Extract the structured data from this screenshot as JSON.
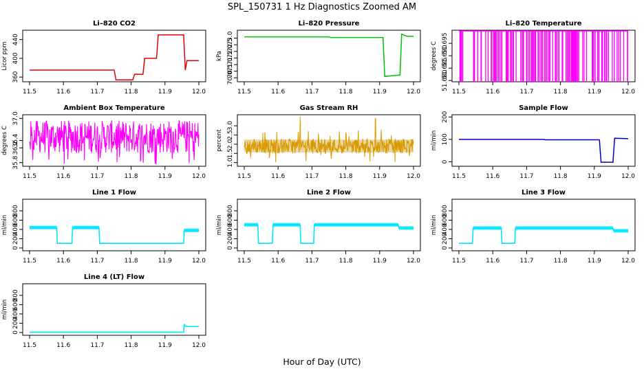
{
  "title": "SPL_150731  1 Hz Diagnostics Zoomed AM",
  "xlabel": "Hour of Day (UTC)",
  "chart_data": [
    {
      "type": "line",
      "title": "Li–820 CO2",
      "ylabel": "Licor ppm",
      "color": "#e00000",
      "xlim": [
        11.5,
        12.0
      ],
      "ylim": [
        350,
        460
      ],
      "xticks": [
        "11.5",
        "11.6",
        "11.7",
        "11.8",
        "11.9",
        "12.0"
      ],
      "yticks": [
        [
          "360",
          360
        ],
        [
          "400",
          400
        ],
        [
          "440",
          440
        ]
      ],
      "series": [
        {
          "x": [
            11.5,
            11.75,
            11.755,
            11.805,
            11.81,
            11.835,
            11.84,
            11.875,
            11.88,
            11.955,
            11.96,
            11.965,
            12.0
          ],
          "y": [
            375,
            375,
            354,
            354,
            366,
            366,
            400,
            400,
            450,
            450,
            375,
            395,
            395
          ]
        }
      ]
    },
    {
      "type": "line",
      "title": "Li–820 Pressure",
      "ylabel": "kPa",
      "color": "#00c000",
      "xlim": [
        11.5,
        12.0
      ],
      "ylim": [
        69.7,
        73.6
      ],
      "xticks": [
        "11.5",
        "11.6",
        "11.7",
        "11.8",
        "11.9",
        "12.0"
      ],
      "yticks": [
        [
          "70.0",
          70.0
        ],
        [
          "70.5",
          70.5
        ],
        [
          "71.0",
          71.0
        ],
        [
          "71.5",
          71.5
        ],
        [
          "72.0",
          72.0
        ],
        [
          "72.5",
          72.5
        ],
        [
          "73.0",
          73.0
        ]
      ],
      "series": [
        {
          "x": [
            11.5,
            11.75,
            11.755,
            11.91,
            11.915,
            11.955,
            11.96,
            11.965,
            11.98,
            12.0
          ],
          "y": [
            73.1,
            73.1,
            73.05,
            73.05,
            70.1,
            70.2,
            70.2,
            73.3,
            73.15,
            73.15
          ]
        }
      ]
    },
    {
      "type": "line",
      "title": "Li–820 Temperature",
      "ylabel": "degrees C",
      "color": "#ff00ff",
      "xlim": [
        11.5,
        12.0
      ],
      "ylim": [
        51.6795,
        51.7003
      ],
      "xticks": [
        "11.5",
        "11.6",
        "11.7",
        "11.8",
        "11.9",
        "12.0"
      ],
      "yticks": [
        [
          "51.680",
          51.68
        ],
        [
          "51.685",
          51.685
        ],
        [
          "51.690",
          51.69
        ],
        [
          "51.695",
          51.695
        ]
      ],
      "series": [
        {
          "note_values": "alternating between 51.700 and 51.679 with dense spikes"
        }
      ]
    },
    {
      "type": "line",
      "title": "Ambient Box Temperature",
      "ylabel": "degrees C",
      "color": "#ff00ff",
      "xlim": [
        11.5,
        12.0
      ],
      "ylim": [
        35.7,
        37.1
      ],
      "xticks": [
        "11.5",
        "11.6",
        "11.7",
        "11.8",
        "11.9",
        "12.0"
      ],
      "yticks": [
        [
          "35.8",
          35.8
        ],
        [
          "36.2",
          36.2
        ],
        [
          "36.4",
          36.4
        ],
        [
          "37.0",
          37.0
        ]
      ],
      "series": [
        {
          "low": 36.05,
          "high": 36.95
        }
      ]
    },
    {
      "type": "line",
      "title": "Gas Stream RH",
      "ylabel": "percent",
      "color": "#e0a000",
      "xlim": [
        11.5,
        12.0
      ],
      "ylim": [
        0.8,
        3.6
      ],
      "xticks": [
        "11.5",
        "11.6",
        "11.7",
        "11.8",
        "11.9",
        "12.0"
      ],
      "yticks": [
        [
          "1.0",
          1.0
        ],
        [
          "1.5",
          1.5
        ],
        [
          "2.0",
          2.0
        ],
        [
          "2.5",
          2.5
        ],
        [
          "3.0",
          3.0
        ]
      ],
      "series": [
        {
          "low": 1.5,
          "high": 2.3,
          "peaks": [
            [
              11.665,
              3.5
            ],
            [
              11.888,
              3.4
            ]
          ]
        }
      ]
    },
    {
      "type": "line",
      "title": "Sample Flow",
      "ylabel": "ml/min",
      "color": "#0000cc",
      "xlim": [
        11.5,
        12.0
      ],
      "ylim": [
        -20,
        210
      ],
      "xticks": [
        "11.5",
        "11.6",
        "11.7",
        "11.8",
        "11.9",
        "12.0"
      ],
      "yticks": [
        [
          "0",
          0
        ],
        [
          "100",
          100
        ],
        [
          "200",
          200
        ]
      ],
      "series": [
        {
          "x": [
            11.5,
            11.75,
            11.755,
            11.915,
            11.92,
            11.955,
            11.96,
            12.0
          ],
          "y": [
            100,
            100,
            98,
            98,
            -2,
            -2,
            105,
            103
          ]
        }
      ]
    },
    {
      "type": "line",
      "title": "Line 1 Flow",
      "ylabel": "ml/min",
      "color": "#00e5ff",
      "xlim": [
        11.5,
        12.0
      ],
      "ylim": [
        -60,
        1050
      ],
      "xticks": [
        "11.5",
        "11.6",
        "11.7",
        "11.8",
        "11.9",
        "12.0"
      ],
      "yticks": [
        [
          "0",
          0
        ],
        [
          "200",
          200
        ],
        [
          "400",
          400
        ],
        [
          "600",
          600
        ],
        [
          "800",
          800
        ]
      ],
      "series": [
        {
          "x": [
            11.5,
            11.58,
            11.582,
            11.625,
            11.627,
            11.705,
            11.707,
            11.955,
            11.957,
            12.0
          ],
          "y": [
            440,
            440,
            100,
            100,
            440,
            440,
            100,
            100,
            380,
            380
          ]
        }
      ]
    },
    {
      "type": "line",
      "title": "Line 2 Flow",
      "ylabel": "ml/min",
      "color": "#00e5ff",
      "xlim": [
        11.5,
        12.0
      ],
      "ylim": [
        -60,
        1050
      ],
      "xticks": [
        "11.5",
        "11.6",
        "11.7",
        "11.8",
        "11.9",
        "12.0"
      ],
      "yticks": [
        [
          "0",
          0
        ],
        [
          "200",
          200
        ],
        [
          "400",
          400
        ],
        [
          "600",
          600
        ],
        [
          "800",
          800
        ]
      ],
      "series": [
        {
          "x": [
            11.5,
            11.54,
            11.542,
            11.583,
            11.585,
            11.665,
            11.667,
            11.705,
            11.707,
            11.955,
            11.957,
            12.0
          ],
          "y": [
            500,
            500,
            100,
            100,
            500,
            500,
            100,
            100,
            500,
            500,
            430,
            430
          ]
        }
      ]
    },
    {
      "type": "line",
      "title": "Line 3 Flow",
      "ylabel": "ml/min",
      "color": "#00e5ff",
      "xlim": [
        11.5,
        12.0
      ],
      "ylim": [
        -60,
        1050
      ],
      "xticks": [
        "11.5",
        "11.6",
        "11.7",
        "11.8",
        "11.9",
        "12.0"
      ],
      "yticks": [
        [
          "0",
          0
        ],
        [
          "200",
          200
        ],
        [
          "400",
          400
        ],
        [
          "600",
          600
        ],
        [
          "800",
          800
        ]
      ],
      "series": [
        {
          "x": [
            11.5,
            11.54,
            11.542,
            11.625,
            11.627,
            11.665,
            11.667,
            11.955,
            11.957,
            12.0
          ],
          "y": [
            100,
            100,
            430,
            430,
            100,
            100,
            430,
            430,
            370,
            370
          ]
        }
      ]
    },
    {
      "type": "line",
      "title": "Line 4 (LT) Flow",
      "ylabel": "ml/min",
      "color": "#00e5ff",
      "xlim": [
        11.5,
        12.0
      ],
      "ylim": [
        -60,
        1050
      ],
      "xticks": [
        "11.5",
        "11.6",
        "11.7",
        "11.8",
        "11.9",
        "12.0"
      ],
      "yticks": [
        [
          "0",
          0
        ],
        [
          "200",
          200
        ],
        [
          "400",
          400
        ],
        [
          "600",
          600
        ],
        [
          "800",
          800
        ]
      ],
      "series": [
        {
          "x": [
            11.5,
            11.955,
            11.957,
            11.96,
            11.965,
            12.0
          ],
          "y": [
            5,
            5,
            170,
            140,
            130,
            130
          ]
        }
      ]
    }
  ]
}
